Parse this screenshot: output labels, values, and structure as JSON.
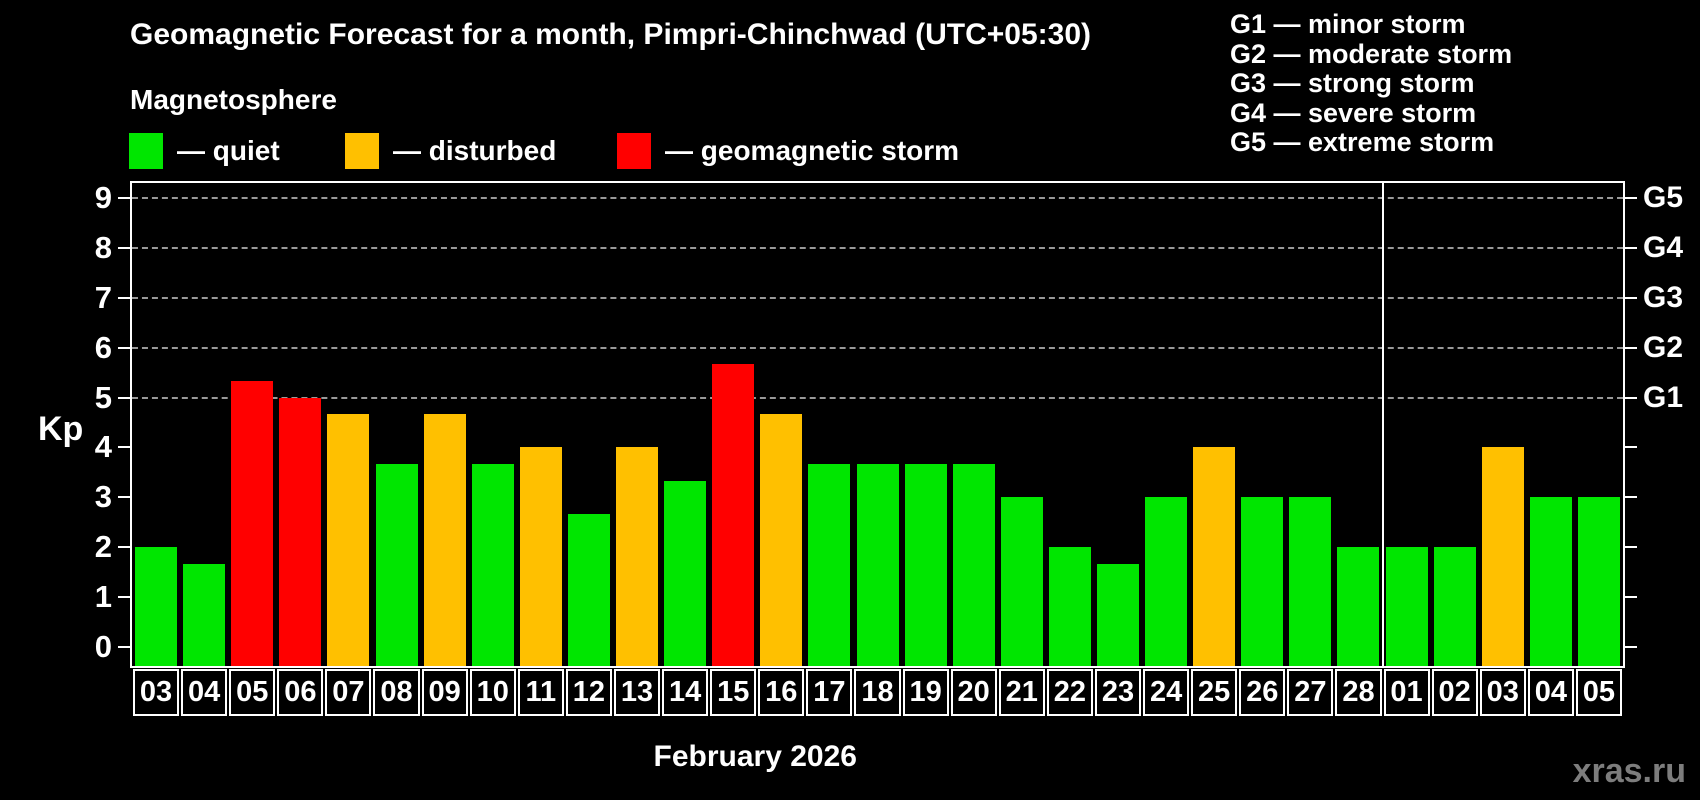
{
  "watermark": "xras.ru",
  "chart_data": {
    "type": "bar",
    "title": "Geomagnetic Forecast for a month, Pimpri-Chinchwad (UTC+05:30)",
    "subtitle": "Magnetosphere",
    "ylabel": "Kp",
    "xlabel": "February 2026",
    "legend": [
      {
        "label": "— quiet",
        "status": "quiet"
      },
      {
        "label": "— disturbed",
        "status": "disturbed"
      },
      {
        "label": "— geomagnetic storm",
        "status": "storm"
      }
    ],
    "storm_scale_legend": [
      "G1 — minor storm",
      "G2 — moderate storm",
      "G3 — strong storm",
      "G4 — severe storm",
      "G5 — extreme storm"
    ],
    "ylim": [
      0,
      9.4
    ],
    "yticks": [
      0,
      1,
      2,
      3,
      4,
      5,
      6,
      7,
      8,
      9
    ],
    "right_axis_ticks": [
      {
        "label": "G1",
        "kp": 5
      },
      {
        "label": "G2",
        "kp": 6
      },
      {
        "label": "G3",
        "kp": 7
      },
      {
        "label": "G4",
        "kp": 8
      },
      {
        "label": "G5",
        "kp": 9
      }
    ],
    "grid_kp_levels": [
      5,
      6,
      7,
      8,
      9
    ],
    "grid_style": "dashed",
    "legend_position": "top",
    "colors": {
      "quiet": "#00E600",
      "disturbed": "#FFC000",
      "storm": "#FF0000",
      "grid": "#999999",
      "frame": "#FFFFFF",
      "background": "#000000",
      "watermark": "#7D7D7D"
    },
    "month_boundary_index": 26,
    "bars": [
      {
        "day": "03",
        "kp": 2.0,
        "status": "quiet"
      },
      {
        "day": "04",
        "kp": 1.67,
        "status": "quiet"
      },
      {
        "day": "05",
        "kp": 5.33,
        "status": "storm"
      },
      {
        "day": "06",
        "kp": 5.0,
        "status": "storm"
      },
      {
        "day": "07",
        "kp": 4.67,
        "status": "disturbed"
      },
      {
        "day": "08",
        "kp": 3.67,
        "status": "quiet"
      },
      {
        "day": "09",
        "kp": 4.67,
        "status": "disturbed"
      },
      {
        "day": "10",
        "kp": 3.67,
        "status": "quiet"
      },
      {
        "day": "11",
        "kp": 4.0,
        "status": "disturbed"
      },
      {
        "day": "12",
        "kp": 2.67,
        "status": "quiet"
      },
      {
        "day": "13",
        "kp": 4.0,
        "status": "disturbed"
      },
      {
        "day": "14",
        "kp": 3.33,
        "status": "quiet"
      },
      {
        "day": "15",
        "kp": 5.67,
        "status": "storm"
      },
      {
        "day": "16",
        "kp": 4.67,
        "status": "disturbed"
      },
      {
        "day": "17",
        "kp": 3.67,
        "status": "quiet"
      },
      {
        "day": "18",
        "kp": 3.67,
        "status": "quiet"
      },
      {
        "day": "19",
        "kp": 3.67,
        "status": "quiet"
      },
      {
        "day": "20",
        "kp": 3.67,
        "status": "quiet"
      },
      {
        "day": "21",
        "kp": 3.0,
        "status": "quiet"
      },
      {
        "day": "22",
        "kp": 2.0,
        "status": "quiet"
      },
      {
        "day": "23",
        "kp": 1.67,
        "status": "quiet"
      },
      {
        "day": "24",
        "kp": 3.0,
        "status": "quiet"
      },
      {
        "day": "25",
        "kp": 4.0,
        "status": "disturbed"
      },
      {
        "day": "26",
        "kp": 3.0,
        "status": "quiet"
      },
      {
        "day": "27",
        "kp": 3.0,
        "status": "quiet"
      },
      {
        "day": "28",
        "kp": 2.0,
        "status": "quiet"
      },
      {
        "day": "01",
        "kp": 2.0,
        "status": "quiet"
      },
      {
        "day": "02",
        "kp": 2.0,
        "status": "quiet"
      },
      {
        "day": "03",
        "kp": 4.0,
        "status": "disturbed"
      },
      {
        "day": "04",
        "kp": 3.0,
        "status": "quiet"
      },
      {
        "day": "05",
        "kp": 3.0,
        "status": "quiet"
      }
    ]
  }
}
